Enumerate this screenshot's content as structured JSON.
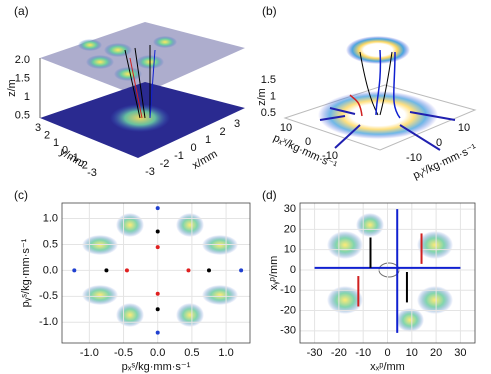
{
  "chart_data": [
    {
      "type": "surface3d",
      "label": "(a)",
      "zlabel": "z/m",
      "ylabel": "y/mm",
      "xlabel": "x/mm",
      "zticks": [
        {
          "value": 2,
          "label": "2.0"
        },
        1.5,
        1,
        0.5
      ],
      "yticks": [
        3,
        2,
        1,
        0,
        -1,
        -2,
        -3
      ],
      "xticks": [
        -3,
        -2,
        -1,
        0,
        1,
        2,
        3
      ]
    },
    {
      "type": "surface3d",
      "label": "(b)",
      "zlabel": "z/m",
      "xlabel": "pₓˣ/kg·mm·s⁻¹",
      "ylabel": "pᵧˣ/kg·mm·s⁻¹",
      "zticks": [
        1.5,
        1,
        0.5
      ],
      "xticks": [
        10,
        0,
        -10
      ],
      "yticks": [
        -10,
        0,
        10
      ]
    },
    {
      "type": "scatter",
      "label": "(c)",
      "xlabel": "pₓˢ/kg·mm·s⁻¹",
      "ylabel": "pᵧˢ/kg·mm·s⁻¹",
      "xlim": [
        -1.4,
        1.35
      ],
      "ylim": [
        -1.4,
        1.3
      ],
      "xticks": [
        {
          "value": -1,
          "label": "-1.0"
        },
        -0.5,
        {
          "value": 0,
          "label": "0.0"
        },
        0.5,
        {
          "value": 1,
          "label": "1.0"
        }
      ],
      "yticks": [
        {
          "value": -1,
          "label": "-1.0"
        },
        -0.5,
        {
          "value": 0,
          "label": "0.0"
        },
        0.5,
        {
          "value": 1,
          "label": "1.0"
        }
      ],
      "grid": true,
      "series": [
        {
          "color": "#000000",
          "x": [
            -0.75,
            0.75,
            0,
            0
          ],
          "values": [
            0,
            0,
            0.75,
            -0.75
          ]
        },
        {
          "color": "#e02020",
          "x": [
            -0.45,
            0.45,
            0,
            0
          ],
          "values": [
            0,
            0,
            0.45,
            -0.45
          ]
        },
        {
          "color": "#2040d0",
          "x": [
            -1.22,
            1.22,
            0,
            0
          ],
          "values": [
            0,
            0,
            1.2,
            -1.2
          ]
        }
      ]
    },
    {
      "type": "line",
      "label": "(d)",
      "xlabel": "xₓᵖ/mm",
      "ylabel": "xᵧᵖ/mm",
      "xlim": [
        -36,
        36
      ],
      "ylim": [
        -36,
        33
      ],
      "xticks": [
        -30,
        -20,
        -10,
        0,
        10,
        20,
        30
      ],
      "yticks": [
        -30,
        -20,
        -10,
        0,
        10,
        20,
        30
      ],
      "grid": true,
      "series": [
        {
          "color": "#1020d0",
          "x": [
            -30,
            30
          ],
          "values": [
            1,
            1
          ]
        },
        {
          "color": "#1020d0",
          "x": [
            4,
            4
          ],
          "values": [
            30,
            -31
          ]
        },
        {
          "color": "#000000",
          "x": [
            -7,
            -7
          ],
          "values": [
            1,
            16
          ]
        },
        {
          "color": "#000000",
          "x": [
            8,
            8
          ],
          "values": [
            -1,
            -16
          ]
        },
        {
          "color": "#d02020",
          "x": [
            -12,
            -12
          ],
          "values": [
            -3,
            -18
          ]
        },
        {
          "color": "#d02020",
          "x": [
            14,
            14
          ],
          "values": [
            3,
            18
          ]
        }
      ]
    }
  ]
}
